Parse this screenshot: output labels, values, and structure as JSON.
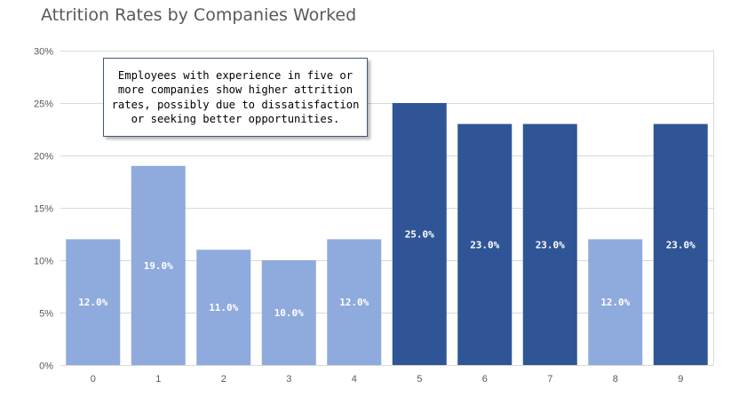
{
  "chart_data": {
    "type": "bar",
    "title": "Attrition Rates by Companies Worked",
    "xlabel": "",
    "ylabel": "",
    "categories": [
      "0",
      "1",
      "2",
      "3",
      "4",
      "5",
      "6",
      "7",
      "8",
      "9"
    ],
    "values": [
      12.0,
      19.0,
      11.0,
      10.0,
      12.0,
      25.0,
      23.0,
      23.0,
      12.0,
      23.0
    ],
    "data_labels": [
      "12.0%",
      "19.0%",
      "11.0%",
      "10.0%",
      "12.0%",
      "25.0%",
      "23.0%",
      "23.0%",
      "12.0%",
      "23.0%"
    ],
    "ylim": [
      0,
      30
    ],
    "yticks": [
      "0%",
      "5%",
      "10%",
      "15%",
      "20%",
      "25%",
      "30%"
    ],
    "grid": true,
    "legend": "none",
    "colors": {
      "low": "#8faadc",
      "high": "#2f5597",
      "grid": "#d9d9d9",
      "label": "#ffffff",
      "tick": "#595959"
    },
    "highlighted_categories": [
      "5",
      "6",
      "7",
      "9"
    ],
    "annotation": "Employees with experience in five or more companies show higher attrition rates, possibly due to dissatisfaction or seeking better opportunities."
  }
}
